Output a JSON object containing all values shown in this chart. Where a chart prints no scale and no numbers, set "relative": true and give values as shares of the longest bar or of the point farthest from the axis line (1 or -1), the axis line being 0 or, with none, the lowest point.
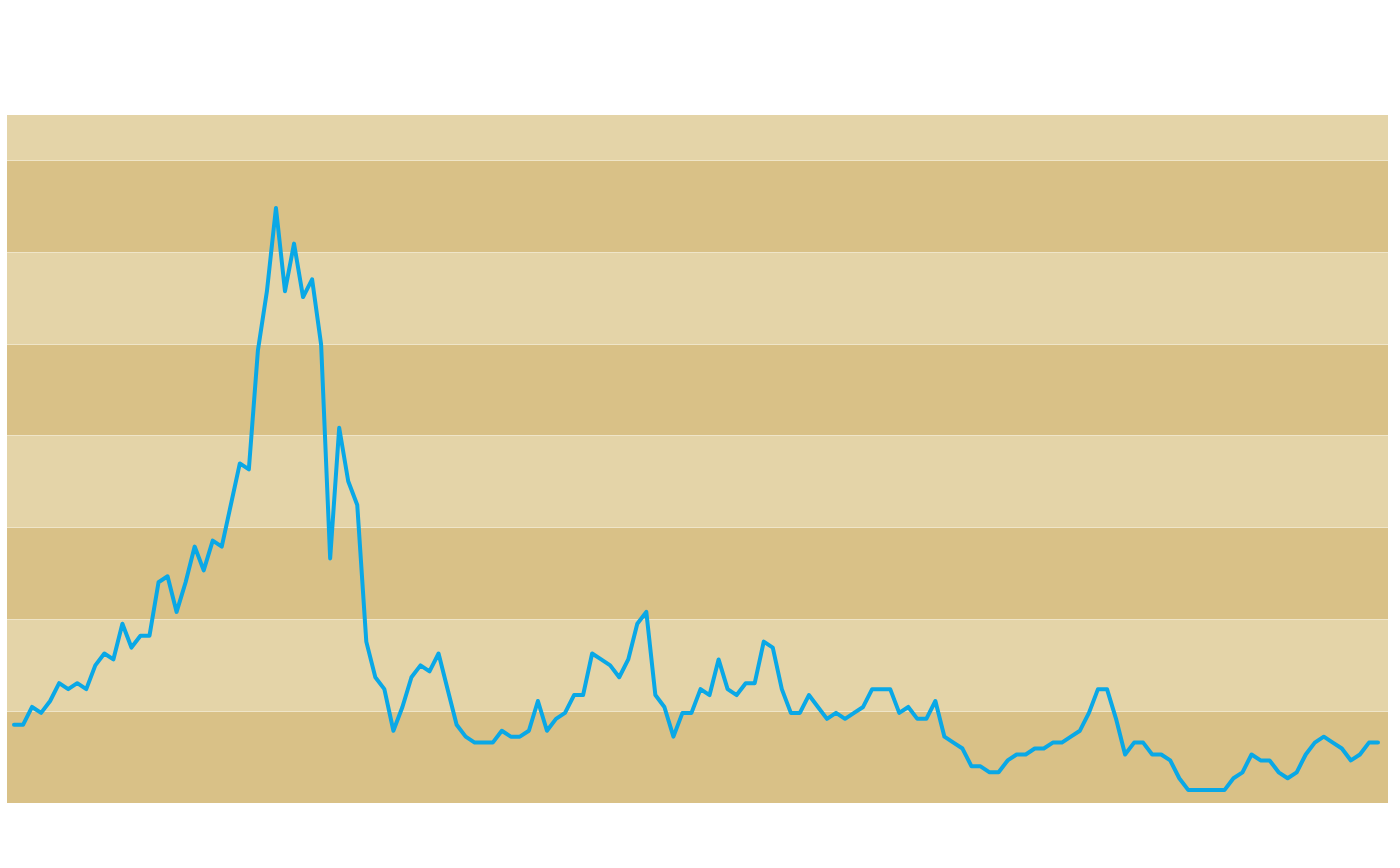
{
  "chart_data": {
    "type": "line",
    "relative": true,
    "categories": [
      null,
      null,
      null,
      null,
      null,
      null,
      null,
      null,
      null,
      null,
      null,
      null,
      null,
      null,
      null,
      null,
      null,
      null,
      null,
      null,
      null,
      null,
      null,
      null,
      null,
      null,
      null,
      null,
      null,
      null,
      null,
      null,
      null,
      null,
      null,
      null,
      null,
      null,
      null,
      null,
      null,
      null,
      null,
      null,
      null,
      null,
      null,
      null,
      null,
      null,
      null,
      null,
      null,
      null,
      null,
      null,
      null,
      null,
      null,
      null,
      null,
      null,
      null,
      null,
      null,
      null,
      null,
      null,
      null,
      null,
      null,
      null,
      null,
      null,
      null,
      null,
      null,
      null,
      null,
      null,
      null,
      null,
      null,
      null,
      null,
      null,
      null,
      null,
      null,
      null,
      null,
      null,
      null,
      null,
      null,
      null,
      null,
      null,
      null,
      null,
      null,
      null,
      null,
      null,
      null,
      null,
      null,
      null,
      null,
      null,
      null,
      null,
      null,
      null,
      null,
      null,
      null,
      null,
      null,
      null,
      null,
      null,
      null,
      null,
      null,
      null,
      null,
      null,
      null,
      null,
      null,
      null,
      null,
      null,
      null,
      null,
      null,
      null,
      null,
      null,
      null,
      null,
      null,
      null,
      null,
      null,
      null,
      null,
      null,
      null,
      null,
      null
    ],
    "series": [
      {
        "color": "#0aa8e6",
        "values": [
          0.13,
          0.13,
          0.16,
          0.15,
          0.17,
          0.2,
          0.19,
          0.2,
          0.19,
          0.23,
          0.25,
          0.24,
          0.3,
          0.26,
          0.28,
          0.28,
          0.37,
          0.38,
          0.32,
          0.37,
          0.43,
          0.39,
          0.44,
          0.43,
          0.5,
          0.57,
          0.56,
          0.76,
          0.86,
          1,
          0.86,
          0.94,
          0.85,
          0.88,
          0.77,
          0.41,
          0.63,
          0.54,
          0.5,
          0.27,
          0.21,
          0.19,
          0.12,
          0.16,
          0.21,
          0.23,
          0.22,
          0.25,
          0.19,
          0.13,
          0.11,
          0.1,
          0.1,
          0.1,
          0.12,
          0.11,
          0.11,
          0.12,
          0.17,
          0.12,
          0.14,
          0.15,
          0.18,
          0.18,
          0.25,
          0.24,
          0.23,
          0.21,
          0.24,
          0.3,
          0.32,
          0.18,
          0.16,
          0.11,
          0.15,
          0.15,
          0.19,
          0.18,
          0.24,
          0.19,
          0.18,
          0.2,
          0.2,
          0.27,
          0.26,
          0.19,
          0.15,
          0.15,
          0.18,
          0.16,
          0.14,
          0.15,
          0.14,
          0.15,
          0.16,
          0.19,
          0.19,
          0.19,
          0.15,
          0.16,
          0.14,
          0.14,
          0.17,
          0.11,
          0.1,
          0.09,
          0.06,
          0.06,
          0.05,
          0.05,
          0.07,
          0.08,
          0.08,
          0.09,
          0.09,
          0.1,
          0.1,
          0.11,
          0.12,
          0.15,
          0.19,
          0.19,
          0.14,
          0.08,
          0.1,
          0.1,
          0.08,
          0.08,
          0.07,
          0.04,
          0.02,
          0.02,
          0.02,
          0.02,
          0.02,
          0.04,
          0.05,
          0.08,
          0.07,
          0.07,
          0.05,
          0.04,
          0.05,
          0.08,
          0.1,
          0.11,
          0.1,
          0.09,
          0.07,
          0.08,
          0.1,
          0.1
        ]
      }
    ]
  }
}
